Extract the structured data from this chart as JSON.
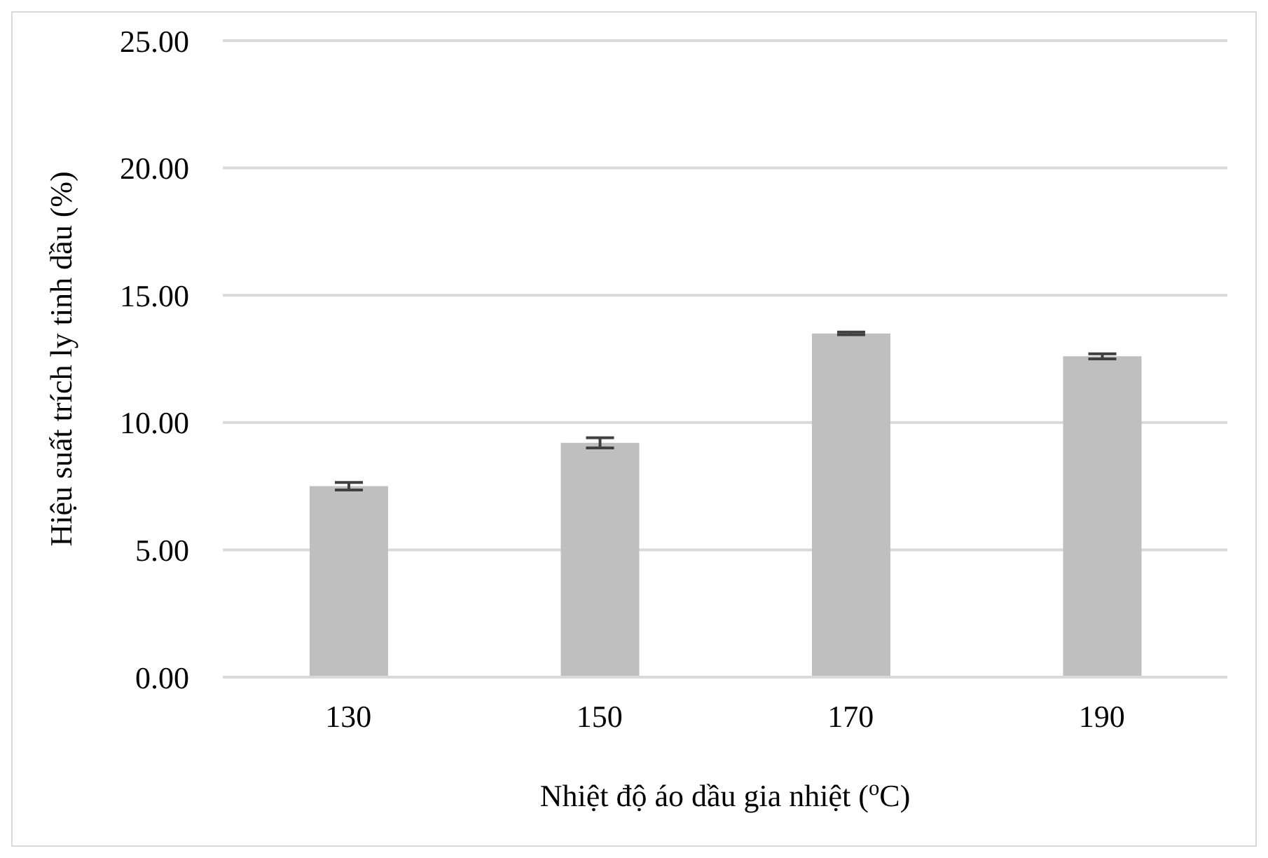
{
  "chart_data": {
    "type": "bar",
    "xlabel": "Nhiệt độ áo dầu gia nhiệt ($^{o}$C)",
    "ylabel": "Hiệu suất trích ly tinh dầu (%)",
    "categories": [
      "130",
      "150",
      "170",
      "190"
    ],
    "values": [
      7.5,
      9.2,
      13.5,
      12.6
    ],
    "errors": [
      0.15,
      0.2,
      0.05,
      0.1
    ],
    "color": "#bfbfbf",
    "ylim": [
      0,
      25
    ],
    "yticks": [
      {
        "value": 0,
        "label": "0.00"
      },
      {
        "value": 5,
        "label": "5.00"
      },
      {
        "value": 10,
        "label": "10.00"
      },
      {
        "value": 15,
        "label": "15.00"
      },
      {
        "value": 20,
        "label": "20.00"
      },
      {
        "value": 25,
        "label": "25.00"
      }
    ],
    "grid": "y"
  }
}
